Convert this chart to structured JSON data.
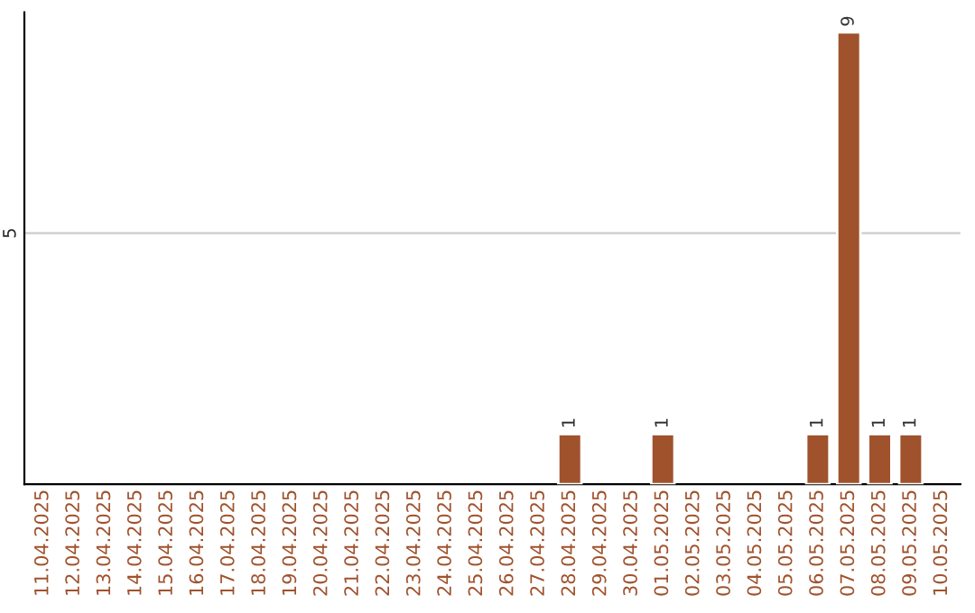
{
  "chart_data": {
    "type": "bar",
    "categories": [
      "11.04.2025",
      "12.04.2025",
      "13.04.2025",
      "14.04.2025",
      "15.04.2025",
      "16.04.2025",
      "17.04.2025",
      "18.04.2025",
      "19.04.2025",
      "20.04.2025",
      "21.04.2025",
      "22.04.2025",
      "23.04.2025",
      "24.04.2025",
      "25.04.2025",
      "26.04.2025",
      "27.04.2025",
      "28.04.2025",
      "29.04.2025",
      "30.04.2025",
      "01.05.2025",
      "02.05.2025",
      "03.05.2025",
      "04.05.2025",
      "05.05.2025",
      "06.05.2025",
      "07.05.2025",
      "08.05.2025",
      "09.05.2025",
      "10.05.2025"
    ],
    "values": [
      null,
      null,
      null,
      null,
      null,
      null,
      null,
      null,
      null,
      null,
      null,
      null,
      null,
      null,
      null,
      null,
      null,
      1,
      null,
      null,
      1,
      null,
      null,
      null,
      null,
      1,
      9,
      1,
      1,
      null
    ],
    "color": "#a0522d",
    "ylim": [
      0,
      9.4
    ],
    "yticks": [
      5
    ],
    "grid": "y",
    "data_labels": true,
    "legend": false
  }
}
